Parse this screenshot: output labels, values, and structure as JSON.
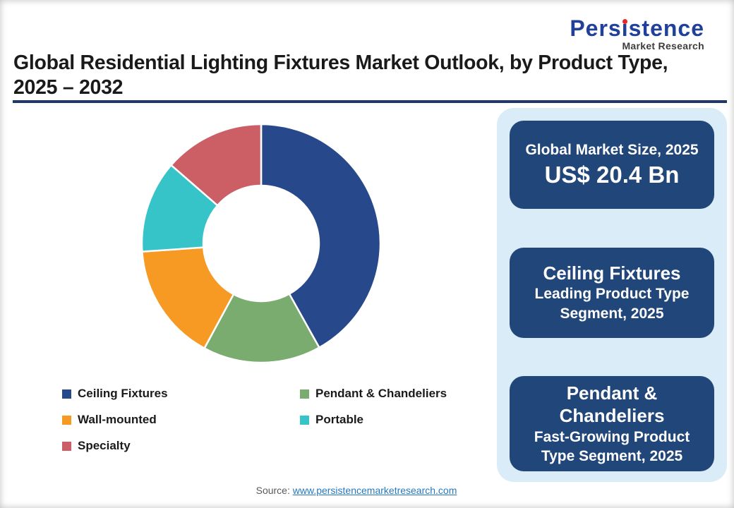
{
  "logo": {
    "name": "Persistence",
    "sub": "Market Research",
    "blue": "#21409A",
    "dot_red": "#E8262C"
  },
  "title": {
    "line1": "Global Residential Lighting Fixtures Market Outlook, by Product Type,",
    "line2": "2025 – 2032"
  },
  "chart_data": {
    "type": "pie",
    "donut": true,
    "title": "Global Residential Lighting Fixtures Market Outlook, by Product Type, 2025 – 2032",
    "categories": [
      "Ceiling Fixtures",
      "Pendant & Chandeliers",
      "Wall-mounted",
      "Portable",
      "Specialty"
    ],
    "values": [
      41.9,
      16.0,
      16.0,
      12.5,
      13.6
    ],
    "colors": [
      "#27488A",
      "#79AC6E",
      "#F79A23",
      "#36C4C9",
      "#CC5E66"
    ],
    "start_angle_deg": 0,
    "clockwise": true,
    "inner_radius_ratio": 0.485,
    "legend": [
      {
        "label": "Ceiling Fixtures",
        "color": "#27488A",
        "col": 0,
        "row": 0
      },
      {
        "label": "Pendant & Chandeliers",
        "color": "#79AC6E",
        "col": 1,
        "row": 0
      },
      {
        "label": "Wall-mounted",
        "color": "#F79A23",
        "col": 0,
        "row": 1
      },
      {
        "label": "Portable",
        "color": "#36C4C9",
        "col": 1,
        "row": 1
      },
      {
        "label": "Specialty",
        "color": "#CC5E66",
        "col": 0,
        "row": 2
      }
    ]
  },
  "panel": {
    "bg": "#D9ECF8",
    "box_bg": "#214679",
    "box1": {
      "label": "Global Market Size, 2025",
      "value": "US$ 20.4 Bn"
    },
    "box2": {
      "title": "Ceiling Fixtures",
      "subtitle": "Leading Product Type Segment, 2025"
    },
    "box3": {
      "title": "Pendant & Chandeliers",
      "subtitle": "Fast-Growing Product Type Segment, 2025"
    }
  },
  "footer": {
    "prefix": "Source: ",
    "link": "www.persistencemarketresearch.com"
  }
}
